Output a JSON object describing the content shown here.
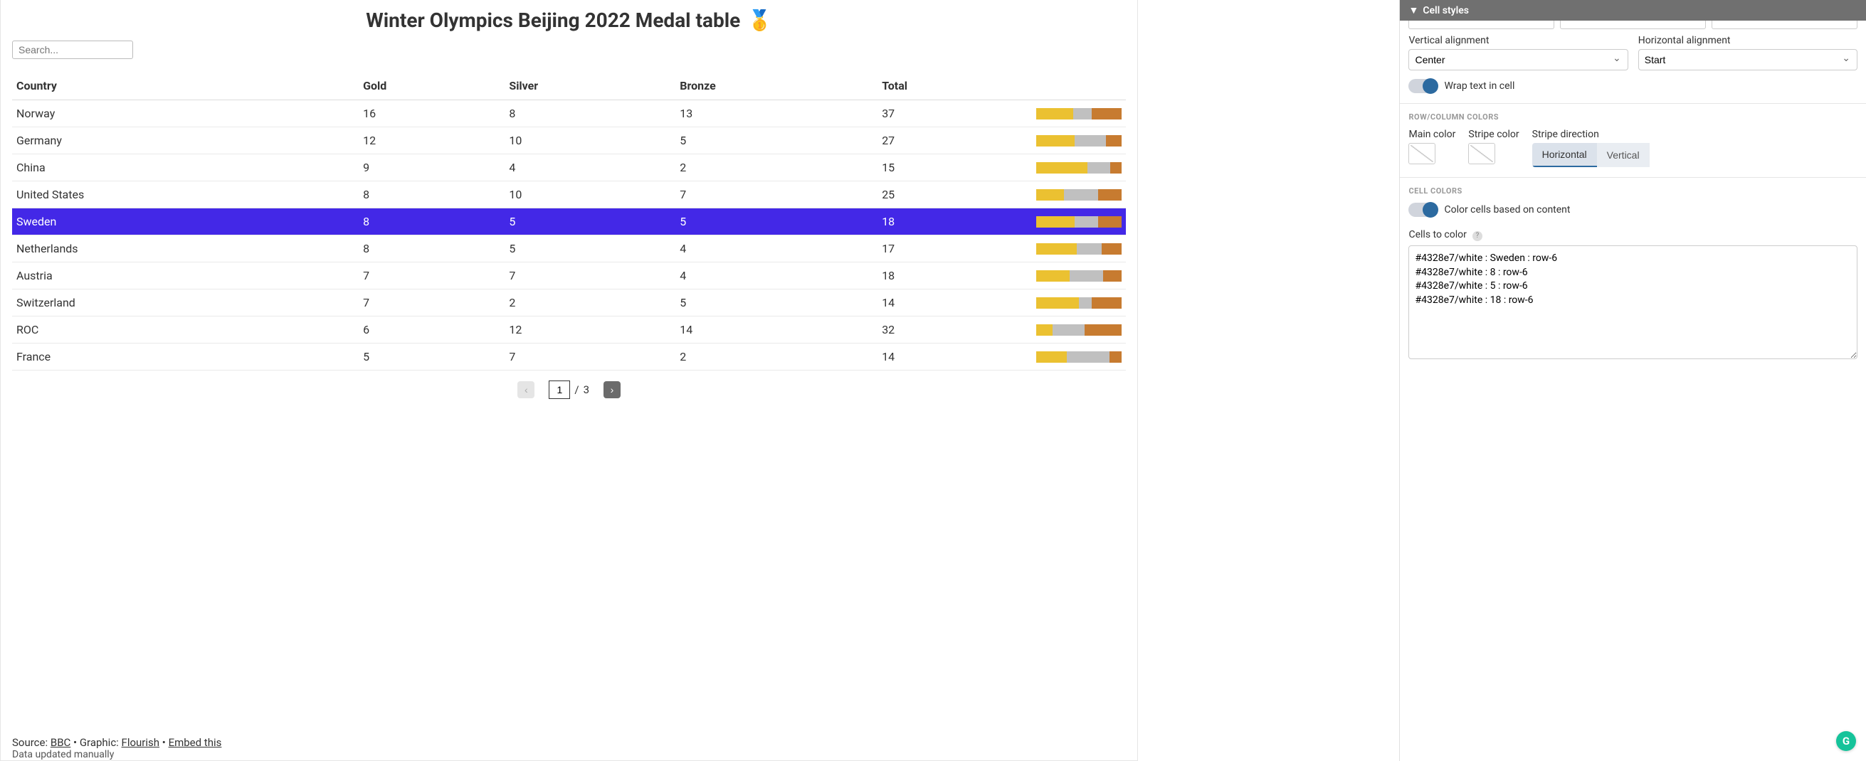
{
  "title": "Winter Olympics Beijing 2022 Medal table",
  "title_emoji": "🥇",
  "search": {
    "placeholder": "Search..."
  },
  "table": {
    "columns": [
      "Country",
      "Gold",
      "Silver",
      "Bronze",
      "Total"
    ],
    "highlight_row_index": 4,
    "highlight_bg": "#4328e7",
    "highlight_fg": "#ffffff",
    "bar_colors": {
      "gold": "#ebc131",
      "silver": "#c0c0c0",
      "bronze": "#c77b30"
    },
    "rows": [
      {
        "country": "Norway",
        "gold": 16,
        "silver": 8,
        "bronze": 13,
        "total": 37
      },
      {
        "country": "Germany",
        "gold": 12,
        "silver": 10,
        "bronze": 5,
        "total": 27
      },
      {
        "country": "China",
        "gold": 9,
        "silver": 4,
        "bronze": 2,
        "total": 15
      },
      {
        "country": "United States",
        "gold": 8,
        "silver": 10,
        "bronze": 7,
        "total": 25
      },
      {
        "country": "Sweden",
        "gold": 8,
        "silver": 5,
        "bronze": 5,
        "total": 18
      },
      {
        "country": "Netherlands",
        "gold": 8,
        "silver": 5,
        "bronze": 4,
        "total": 17
      },
      {
        "country": "Austria",
        "gold": 7,
        "silver": 7,
        "bronze": 4,
        "total": 18
      },
      {
        "country": "Switzerland",
        "gold": 7,
        "silver": 2,
        "bronze": 5,
        "total": 14
      },
      {
        "country": "ROC",
        "gold": 6,
        "silver": 12,
        "bronze": 14,
        "total": 32
      },
      {
        "country": "France",
        "gold": 5,
        "silver": 7,
        "bronze": 2,
        "total": 14
      }
    ]
  },
  "pagination": {
    "current": "1",
    "total": "3",
    "prev": "‹",
    "next": "›",
    "sep": " / "
  },
  "footer": {
    "source_label": "Source: ",
    "source_link": "BBC",
    "bullet": " • ",
    "graphic_label": "Graphic: ",
    "graphic_link": "Flourish",
    "embed_link": "Embed this",
    "sub": "Data updated manually"
  },
  "sidepanel": {
    "accordion_title": "Cell styles",
    "valign": {
      "label": "Vertical alignment",
      "value": "Center"
    },
    "halign": {
      "label": "Horizontal alignment",
      "value": "Start"
    },
    "wrap_toggle": {
      "label": "Wrap text in cell",
      "on": true
    },
    "rowcol_head": "ROW/COLUMN COLORS",
    "main_color_label": "Main color",
    "stripe_color_label": "Stripe color",
    "stripe_dir_label": "Stripe direction",
    "stripe_opts": {
      "a": "Horizontal",
      "b": "Vertical",
      "active": "a"
    },
    "cellcolors_head": "CELL COLORS",
    "color_cells_toggle": {
      "label": "Color cells based on content",
      "on": true
    },
    "cells_to_color_label": "Cells to color",
    "cells_to_color_value": "#4328e7/white : Sweden : row-6\n#4328e7/white : 8 : row-6\n#4328e7/white : 5 : row-6\n#4328e7/white : 18 : row-6"
  },
  "g_badge": "G"
}
